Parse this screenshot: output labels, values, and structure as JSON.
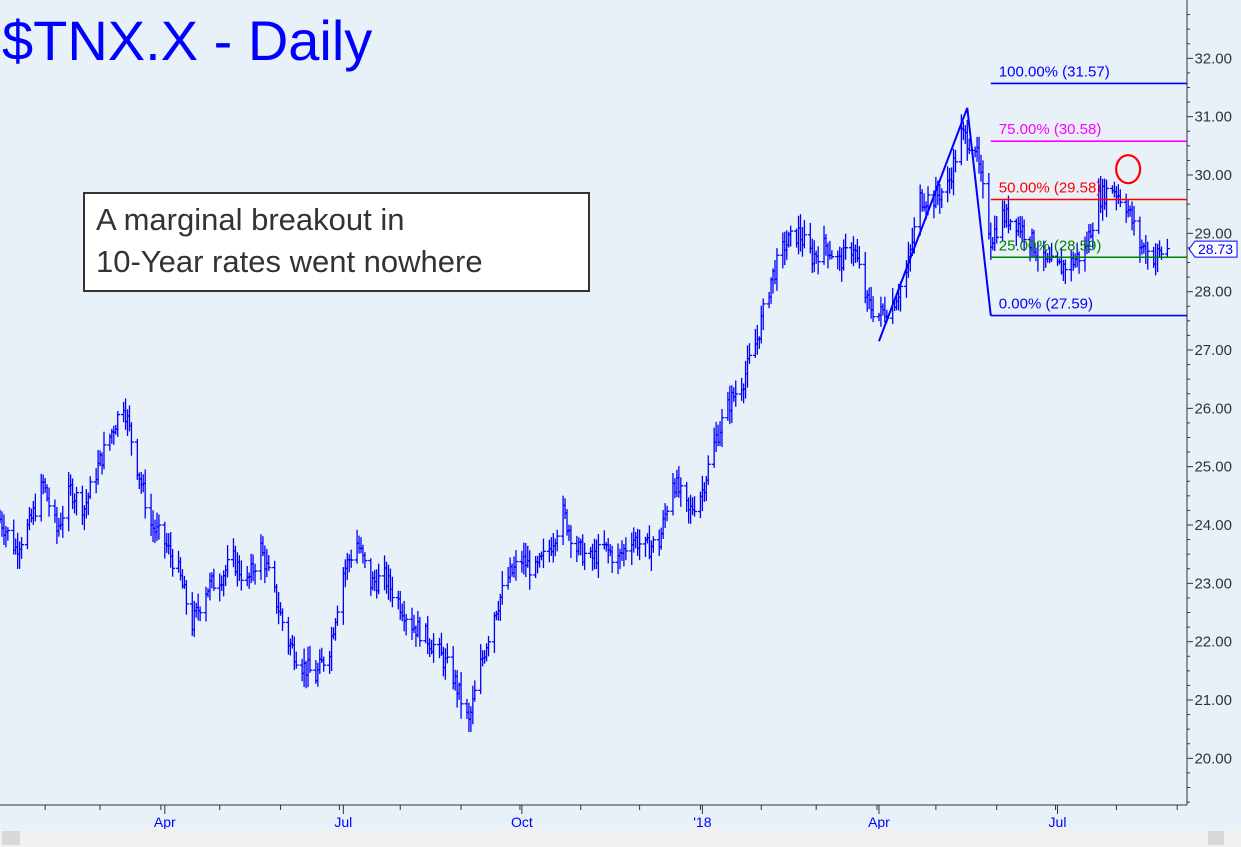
{
  "chart_data": {
    "type": "ohlc",
    "title": "$TNX.X - Daily",
    "annotation": [
      "A marginal breakout in",
      "10-Year rates went nowhere"
    ],
    "ylim": [
      19.2,
      33.0
    ],
    "y_ticks": [
      20,
      21,
      22,
      23,
      24,
      25,
      26,
      27,
      28,
      29,
      30,
      31,
      32
    ],
    "y_tick_labels": [
      "20.00",
      "21.00",
      "22.00",
      "23.00",
      "24.00",
      "25.00",
      "26.00",
      "27.00",
      "28.00",
      "29.00",
      "30.00",
      "31.00",
      "32.00"
    ],
    "x_range": [
      "2017-01-09",
      "2018-09-06"
    ],
    "x_tick_labels": [
      {
        "label": "Apr",
        "date": "2017-04-03"
      },
      {
        "label": "Jul",
        "date": "2017-07-03"
      },
      {
        "label": "Oct",
        "date": "2017-10-02"
      },
      {
        "label": "'18",
        "date": "2018-01-02"
      },
      {
        "label": "Apr",
        "date": "2018-04-02"
      },
      {
        "label": "Jul",
        "date": "2018-07-02"
      }
    ],
    "price_path": [
      [
        "2017-01-09",
        24.1
      ],
      [
        "2017-01-17",
        23.6
      ],
      [
        "2017-01-24",
        24.0
      ],
      [
        "2017-01-31",
        24.7
      ],
      [
        "2017-02-07",
        23.9
      ],
      [
        "2017-02-14",
        24.6
      ],
      [
        "2017-02-21",
        24.3
      ],
      [
        "2017-02-28",
        25.0
      ],
      [
        "2017-03-07",
        25.6
      ],
      [
        "2017-03-13",
        26.1
      ],
      [
        "2017-03-20",
        25.0
      ],
      [
        "2017-03-27",
        24.0
      ],
      [
        "2017-04-03",
        23.7
      ],
      [
        "2017-04-10",
        23.2
      ],
      [
        "2017-04-17",
        22.3
      ],
      [
        "2017-04-24",
        22.9
      ],
      [
        "2017-05-01",
        23.1
      ],
      [
        "2017-05-08",
        23.4
      ],
      [
        "2017-05-15",
        23.0
      ],
      [
        "2017-05-22",
        23.6
      ],
      [
        "2017-05-29",
        22.8
      ],
      [
        "2017-06-05",
        22.0
      ],
      [
        "2017-06-12",
        21.6
      ],
      [
        "2017-06-19",
        21.4
      ],
      [
        "2017-06-26",
        21.9
      ],
      [
        "2017-07-03",
        23.2
      ],
      [
        "2017-07-10",
        23.7
      ],
      [
        "2017-07-17",
        23.0
      ],
      [
        "2017-07-24",
        23.1
      ],
      [
        "2017-07-31",
        22.7
      ],
      [
        "2017-08-07",
        22.3
      ],
      [
        "2017-08-14",
        22.1
      ],
      [
        "2017-08-21",
        21.8
      ],
      [
        "2017-08-28",
        21.4
      ],
      [
        "2017-09-05",
        20.6
      ],
      [
        "2017-09-11",
        21.6
      ],
      [
        "2017-09-18",
        22.5
      ],
      [
        "2017-09-25",
        23.1
      ],
      [
        "2017-10-02",
        23.4
      ],
      [
        "2017-10-09",
        23.2
      ],
      [
        "2017-10-16",
        23.6
      ],
      [
        "2017-10-23",
        24.2
      ],
      [
        "2017-10-30",
        23.6
      ],
      [
        "2017-11-06",
        23.4
      ],
      [
        "2017-11-13",
        23.6
      ],
      [
        "2017-11-20",
        23.4
      ],
      [
        "2017-11-27",
        23.8
      ],
      [
        "2017-12-04",
        23.6
      ],
      [
        "2017-12-11",
        23.7
      ],
      [
        "2017-12-18",
        24.8
      ],
      [
        "2017-12-26",
        24.2
      ],
      [
        "2018-01-02",
        24.6
      ],
      [
        "2018-01-09",
        25.5
      ],
      [
        "2018-01-16",
        26.1
      ],
      [
        "2018-01-23",
        26.5
      ],
      [
        "2018-01-30",
        27.2
      ],
      [
        "2018-02-06",
        28.2
      ],
      [
        "2018-02-13",
        28.8
      ],
      [
        "2018-02-20",
        29.0
      ],
      [
        "2018-02-27",
        28.6
      ],
      [
        "2018-03-06",
        28.8
      ],
      [
        "2018-03-13",
        28.5
      ],
      [
        "2018-03-20",
        28.8
      ],
      [
        "2018-03-27",
        27.8
      ],
      [
        "2018-04-02",
        27.6
      ],
      [
        "2018-04-09",
        27.8
      ],
      [
        "2018-04-16",
        28.3
      ],
      [
        "2018-04-23",
        29.6
      ],
      [
        "2018-04-30",
        29.6
      ],
      [
        "2018-05-07",
        29.8
      ],
      [
        "2018-05-14",
        30.7
      ],
      [
        "2018-05-21",
        30.5
      ],
      [
        "2018-05-29",
        28.9
      ],
      [
        "2018-06-04",
        29.3
      ],
      [
        "2018-06-11",
        29.2
      ],
      [
        "2018-06-18",
        28.9
      ],
      [
        "2018-06-25",
        28.5
      ],
      [
        "2018-07-02",
        28.4
      ],
      [
        "2018-07-09",
        28.5
      ],
      [
        "2018-07-16",
        28.7
      ],
      [
        "2018-07-23",
        29.6
      ],
      [
        "2018-07-30",
        29.8
      ],
      [
        "2018-08-06",
        29.5
      ],
      [
        "2018-08-13",
        28.8
      ],
      [
        "2018-08-20",
        28.6
      ],
      [
        "2018-08-27",
        28.73
      ]
    ],
    "abc_pattern": [
      {
        "date": "2018-04-02",
        "value": 27.15
      },
      {
        "date": "2018-05-17",
        "value": 31.15
      },
      {
        "date": "2018-05-29",
        "value": 27.59
      }
    ],
    "fib_levels": [
      {
        "label": "100.00% (31.57)",
        "value": 31.57,
        "color": "#0000ff"
      },
      {
        "label": "75.00% (30.58)",
        "value": 30.58,
        "color": "#ff00ff"
      },
      {
        "label": "50.00% (29.58)",
        "value": 29.58,
        "color": "#ff0000"
      },
      {
        "label": "25.00% (28.59)",
        "value": 28.59,
        "color": "#008000"
      },
      {
        "label": "0.00% (27.59)",
        "value": 27.59,
        "color": "#0000ff"
      }
    ],
    "fib_start_date": "2018-05-29",
    "highlight_circle": {
      "date": "2018-08-07",
      "value": 30.1,
      "color": "#ff0000"
    },
    "last_price": "28.73",
    "last_value": 28.73,
    "colors": {
      "bars": "#0000ff",
      "background": "#e8f0f8",
      "annotation_border": "#333333"
    }
  }
}
